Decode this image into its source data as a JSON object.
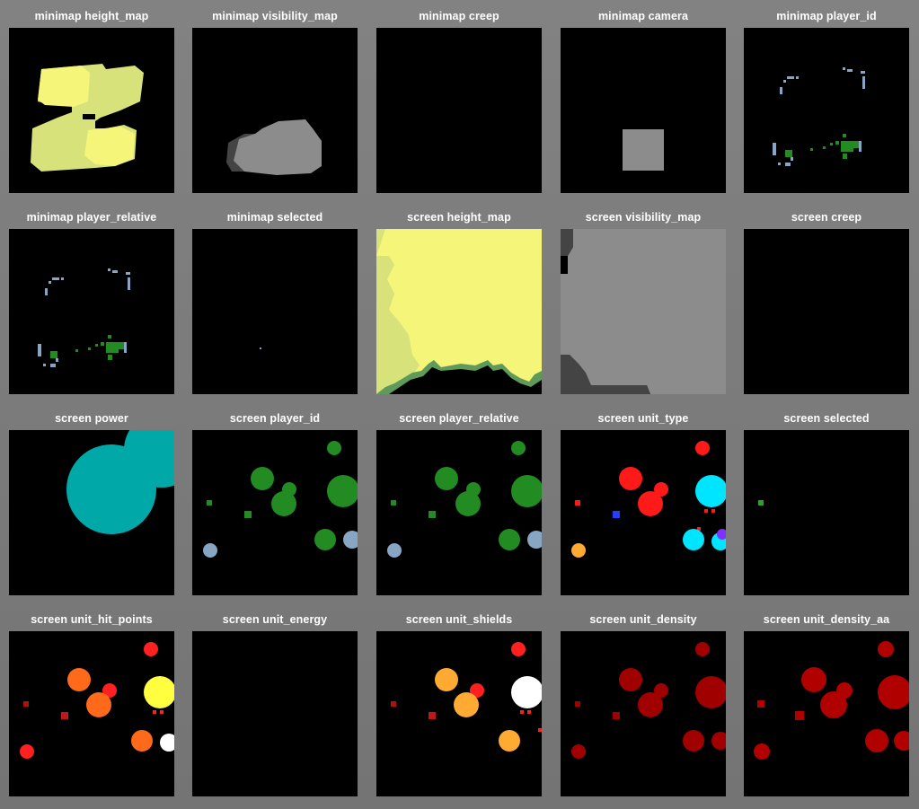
{
  "window": {
    "background_color": "#7a7a7a",
    "panel_background_color": "#000000"
  },
  "layers": [
    {
      "id": "minimap-height-map",
      "title": "minimap height_map"
    },
    {
      "id": "minimap-visibility-map",
      "title": "minimap visibility_map"
    },
    {
      "id": "minimap-creep",
      "title": "minimap creep"
    },
    {
      "id": "minimap-camera",
      "title": "minimap camera"
    },
    {
      "id": "minimap-player-id",
      "title": "minimap player_id"
    },
    {
      "id": "minimap-player-relative",
      "title": "minimap player_relative"
    },
    {
      "id": "minimap-selected",
      "title": "minimap selected"
    },
    {
      "id": "screen-height-map",
      "title": "screen height_map"
    },
    {
      "id": "screen-visibility-map",
      "title": "screen visibility_map"
    },
    {
      "id": "screen-creep",
      "title": "screen creep"
    },
    {
      "id": "screen-power",
      "title": "screen power"
    },
    {
      "id": "screen-player-id",
      "title": "screen player_id"
    },
    {
      "id": "screen-player-relative",
      "title": "screen player_relative"
    },
    {
      "id": "screen-unit-type",
      "title": "screen unit_type"
    },
    {
      "id": "screen-selected",
      "title": "screen selected"
    },
    {
      "id": "screen-unit-hit-points",
      "title": "screen unit_hit_points"
    },
    {
      "id": "screen-unit-energy",
      "title": "screen unit_energy"
    },
    {
      "id": "screen-unit-shields",
      "title": "screen unit_shields"
    },
    {
      "id": "screen-unit-density",
      "title": "screen unit_density"
    },
    {
      "id": "screen-unit-density-aa",
      "title": "screen unit_density_aa"
    }
  ],
  "colors": {
    "height_light": "#f5f57a",
    "height_mid": "#d8e27a",
    "height_edge": "#5f9a5a",
    "visibility_visible": "#8c8c8c",
    "visibility_seen": "#444444",
    "camera": "#8c8c8c",
    "self_unit": "#228b22",
    "allied_unit": "#87a6c4",
    "power": "#00a8a8",
    "unit_type_red": "#ff1a1a",
    "unit_type_cyan": "#00e5ff",
    "unit_type_blue": "#2040ff",
    "unit_type_orange": "#ffaa33",
    "unit_type_purple": "#8030ff",
    "hp_yellow": "#ffff40",
    "hp_orange": "#ff6a1a",
    "hp_red": "#ff2020",
    "hp_white": "#ffffff",
    "shield_orange": "#ffaa33",
    "density_red": "#a00000",
    "selected_green": "#2ca02c"
  }
}
